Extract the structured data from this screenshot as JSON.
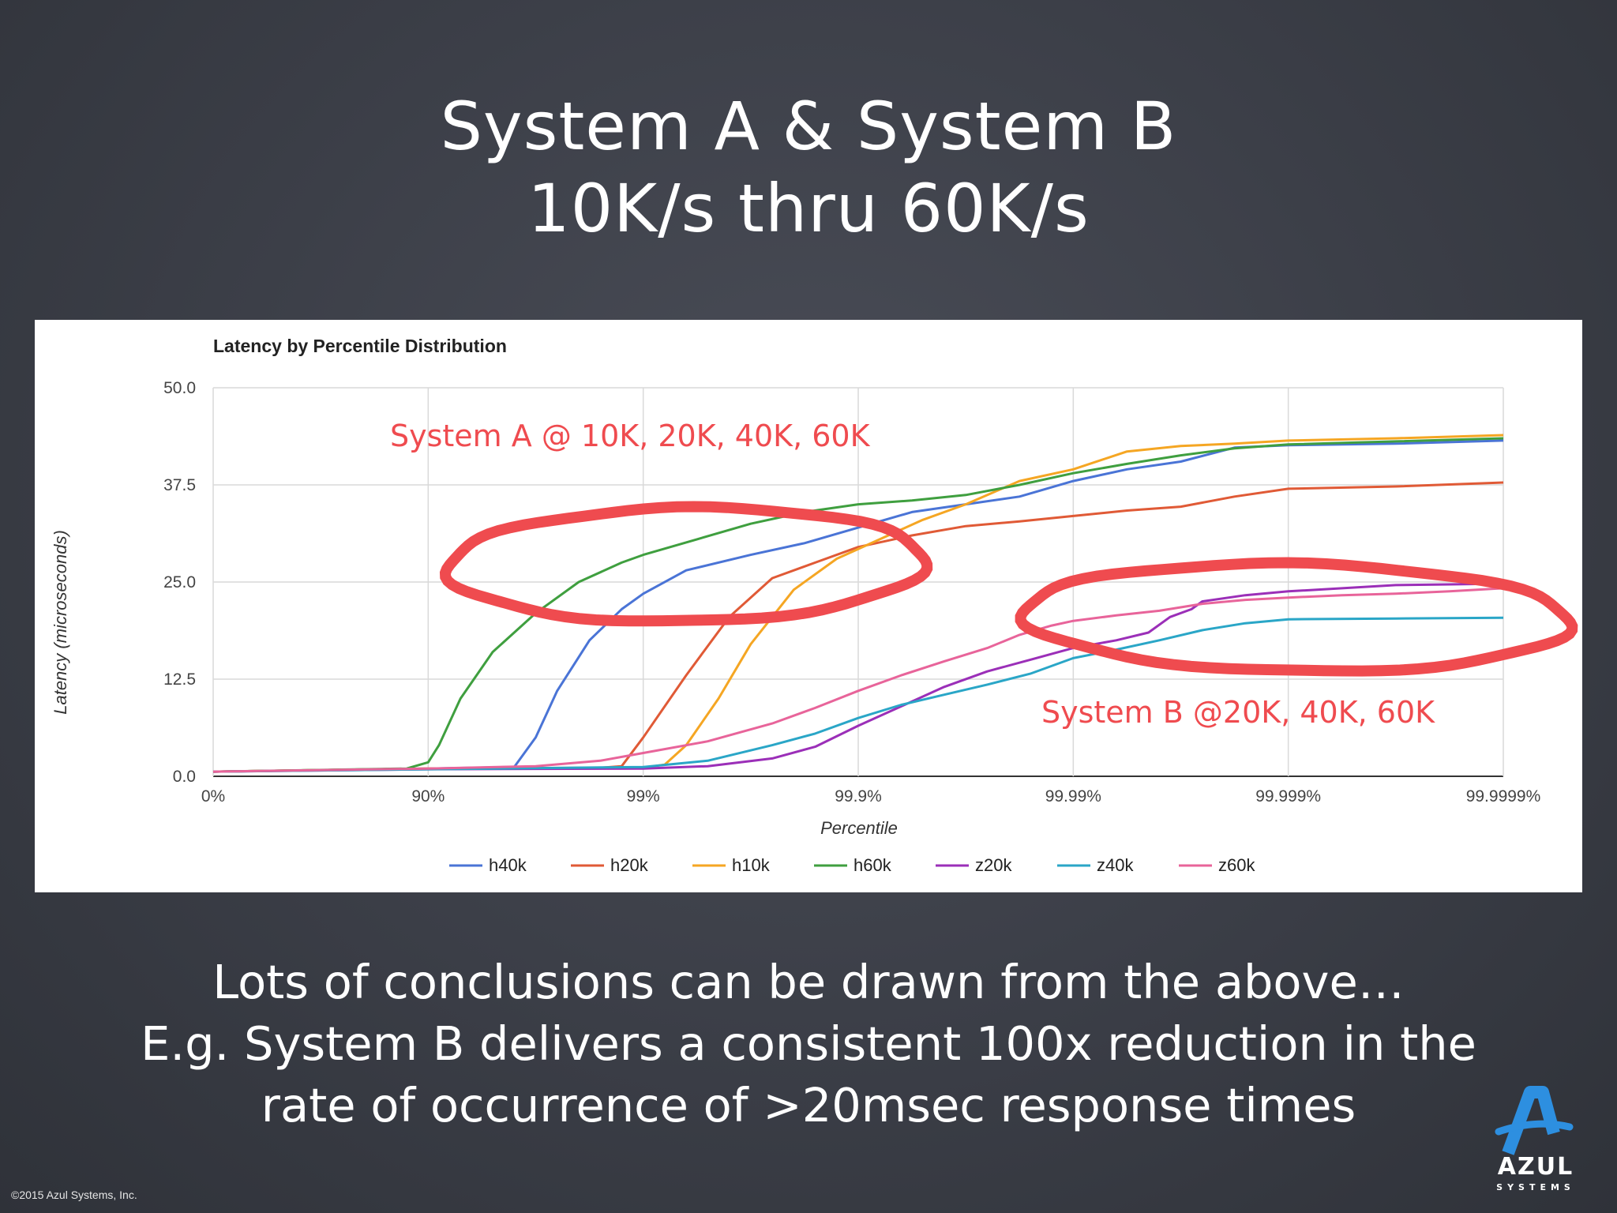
{
  "slide": {
    "title_line1": "System A & System B",
    "title_line2": "10K/s thru 60K/s",
    "body_line1": "Lots of conclusions can be drawn from the above…",
    "body_line2": "E.g. System B delivers a consistent 100x reduction in the",
    "body_line3": "rate of occurrence of >20msec response times",
    "copyright": "©2015 Azul Systems, Inc.",
    "logo_text": "AZUL",
    "logo_sub": "SYSTEMS",
    "annotation_a": "System A @ 10K, 20K, 40K, 60K",
    "annotation_b": "System B @20K, 40K, 60K",
    "annotation_color": "#ef4b4f"
  },
  "chart_data": {
    "type": "line",
    "title": "Latency by Percentile Distribution",
    "xlabel": "Percentile",
    "ylabel": "Latency (microseconds)",
    "x_scale": "log-percentile (nines)",
    "x_ticks": [
      "0%",
      "90%",
      "99%",
      "99.9%",
      "99.99%",
      "99.999%",
      "99.9999%"
    ],
    "y_ticks": [
      "0.0",
      "12.5",
      "25.0",
      "37.5",
      "50.0"
    ],
    "ylim": [
      0,
      50
    ],
    "grid": true,
    "legend_position": "bottom",
    "series": [
      {
        "name": "h40k",
        "color": "#4a74d6",
        "points": [
          [
            0,
            0.6
          ],
          [
            1,
            1.0
          ],
          [
            1.4,
            1.2
          ],
          [
            1.5,
            5
          ],
          [
            1.6,
            11
          ],
          [
            1.75,
            17.5
          ],
          [
            1.9,
            21.5
          ],
          [
            2,
            23.5
          ],
          [
            2.2,
            26.5
          ],
          [
            2.5,
            28.5
          ],
          [
            2.75,
            30
          ],
          [
            3,
            32
          ],
          [
            3.25,
            34
          ],
          [
            3.5,
            35
          ],
          [
            3.75,
            36
          ],
          [
            4,
            38
          ],
          [
            4.25,
            39.5
          ],
          [
            4.5,
            40.5
          ],
          [
            4.75,
            42.3
          ],
          [
            5,
            42.6
          ],
          [
            5.5,
            42.8
          ],
          [
            6,
            43.2
          ]
        ]
      },
      {
        "name": "h20k",
        "color": "#e05a36",
        "points": [
          [
            0,
            0.6
          ],
          [
            1,
            1.0
          ],
          [
            1.8,
            1.1
          ],
          [
            1.9,
            1.3
          ],
          [
            2,
            5
          ],
          [
            2.2,
            13
          ],
          [
            2.4,
            20.5
          ],
          [
            2.6,
            25.5
          ],
          [
            2.8,
            27.5
          ],
          [
            3,
            29.5
          ],
          [
            3.25,
            31
          ],
          [
            3.5,
            32.2
          ],
          [
            3.75,
            32.8
          ],
          [
            4,
            33.5
          ],
          [
            4.25,
            34.2
          ],
          [
            4.5,
            34.7
          ],
          [
            4.75,
            36
          ],
          [
            5,
            37
          ],
          [
            5.5,
            37.3
          ],
          [
            6,
            37.8
          ]
        ]
      },
      {
        "name": "h10k",
        "color": "#f5a623",
        "points": [
          [
            0,
            0.6
          ],
          [
            1,
            1.0
          ],
          [
            2,
            1.1
          ],
          [
            2.1,
            1.5
          ],
          [
            2.2,
            4
          ],
          [
            2.35,
            10
          ],
          [
            2.5,
            17
          ],
          [
            2.7,
            24
          ],
          [
            2.9,
            28
          ],
          [
            3.1,
            30.5
          ],
          [
            3.3,
            33
          ],
          [
            3.5,
            35
          ],
          [
            3.75,
            38
          ],
          [
            4,
            39.5
          ],
          [
            4.25,
            41.8
          ],
          [
            4.5,
            42.5
          ],
          [
            4.75,
            42.8
          ],
          [
            5,
            43.2
          ],
          [
            5.5,
            43.5
          ],
          [
            6,
            43.9
          ]
        ]
      },
      {
        "name": "h60k",
        "color": "#3f9f3f",
        "points": [
          [
            0,
            0.6
          ],
          [
            0.9,
            1.0
          ],
          [
            1,
            1.8
          ],
          [
            1.05,
            4
          ],
          [
            1.15,
            10
          ],
          [
            1.3,
            16
          ],
          [
            1.5,
            21
          ],
          [
            1.7,
            25
          ],
          [
            1.9,
            27.5
          ],
          [
            2,
            28.5
          ],
          [
            2.25,
            30.5
          ],
          [
            2.5,
            32.5
          ],
          [
            2.75,
            34
          ],
          [
            3,
            35
          ],
          [
            3.25,
            35.5
          ],
          [
            3.5,
            36.2
          ],
          [
            3.75,
            37.5
          ],
          [
            4,
            39
          ],
          [
            4.25,
            40.2
          ],
          [
            4.5,
            41.3
          ],
          [
            4.75,
            42.2
          ],
          [
            5,
            42.7
          ],
          [
            5.5,
            43.1
          ],
          [
            6,
            43.5
          ]
        ]
      },
      {
        "name": "z20k",
        "color": "#9b2fb8",
        "points": [
          [
            0,
            0.6
          ],
          [
            1,
            0.9
          ],
          [
            2,
            1.0
          ],
          [
            2.3,
            1.3
          ],
          [
            2.6,
            2.3
          ],
          [
            2.8,
            3.8
          ],
          [
            3,
            6.5
          ],
          [
            3.2,
            9
          ],
          [
            3.4,
            11.5
          ],
          [
            3.6,
            13.5
          ],
          [
            3.8,
            15
          ],
          [
            4,
            16.5
          ],
          [
            4.2,
            17.5
          ],
          [
            4.35,
            18.5
          ],
          [
            4.45,
            20.5
          ],
          [
            4.55,
            21.5
          ],
          [
            4.6,
            22.5
          ],
          [
            4.8,
            23.3
          ],
          [
            5,
            23.8
          ],
          [
            5.25,
            24.2
          ],
          [
            5.5,
            24.6
          ],
          [
            5.75,
            24.7
          ],
          [
            6,
            24.8
          ]
        ]
      },
      {
        "name": "z40k",
        "color": "#2aa6c7",
        "points": [
          [
            0,
            0.6
          ],
          [
            1,
            0.9
          ],
          [
            2,
            1.2
          ],
          [
            2.3,
            2
          ],
          [
            2.6,
            4
          ],
          [
            2.8,
            5.5
          ],
          [
            3,
            7.5
          ],
          [
            3.2,
            9.2
          ],
          [
            3.4,
            10.5
          ],
          [
            3.6,
            11.8
          ],
          [
            3.8,
            13.2
          ],
          [
            4,
            15.2
          ],
          [
            4.2,
            16.3
          ],
          [
            4.4,
            17.5
          ],
          [
            4.6,
            18.8
          ],
          [
            4.8,
            19.7
          ],
          [
            5,
            20.2
          ],
          [
            5.5,
            20.3
          ],
          [
            6,
            20.4
          ]
        ]
      },
      {
        "name": "z60k",
        "color": "#e8649a",
        "points": [
          [
            0,
            0.6
          ],
          [
            1,
            1.0
          ],
          [
            1.5,
            1.3
          ],
          [
            1.8,
            2
          ],
          [
            2,
            3
          ],
          [
            2.3,
            4.5
          ],
          [
            2.6,
            6.8
          ],
          [
            2.8,
            8.8
          ],
          [
            3,
            11
          ],
          [
            3.2,
            13
          ],
          [
            3.4,
            14.8
          ],
          [
            3.6,
            16.5
          ],
          [
            3.75,
            18.2
          ],
          [
            3.9,
            19.4
          ],
          [
            4,
            20
          ],
          [
            4.2,
            20.7
          ],
          [
            4.4,
            21.3
          ],
          [
            4.6,
            22.2
          ],
          [
            4.8,
            22.7
          ],
          [
            5,
            23
          ],
          [
            5.25,
            23.3
          ],
          [
            5.5,
            23.5
          ],
          [
            5.75,
            23.8
          ],
          [
            6,
            24.2
          ]
        ]
      }
    ],
    "annotations": [
      "System A @ 10K, 20K, 40K, 60K",
      "System B @20K, 40K, 60K"
    ]
  }
}
